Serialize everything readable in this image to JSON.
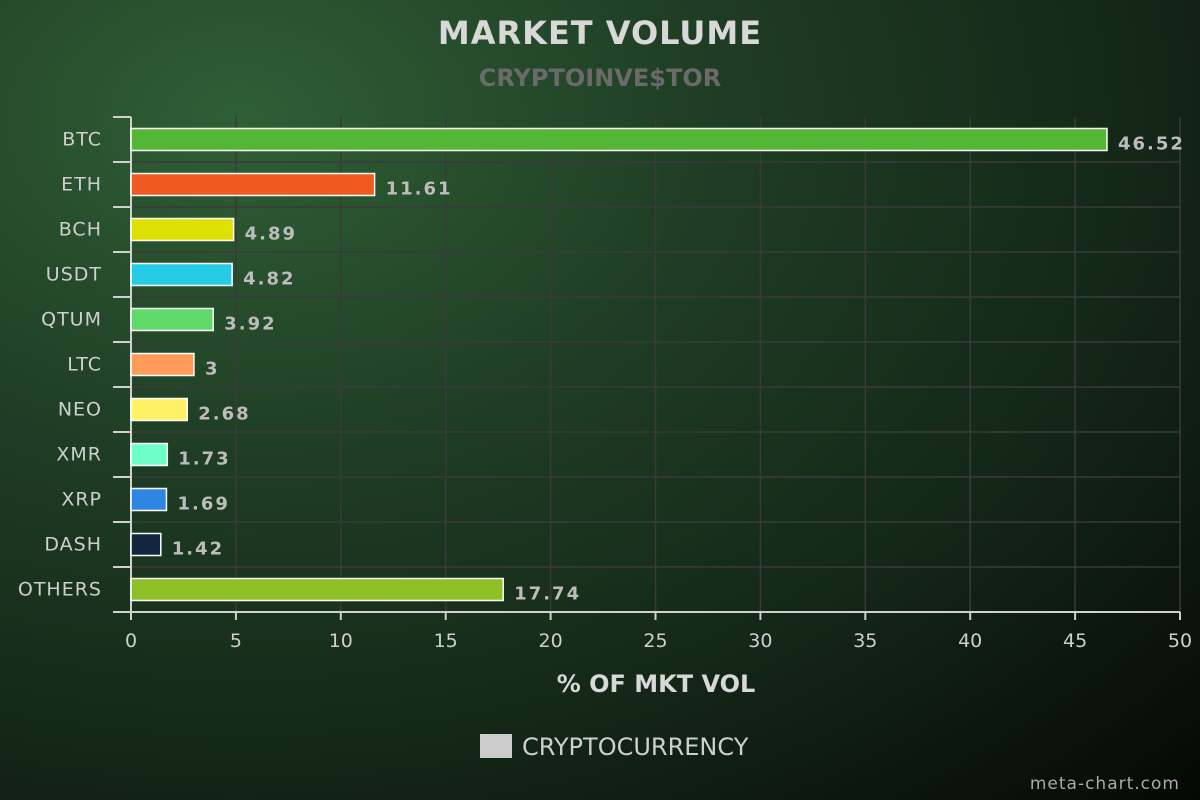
{
  "chart_data": {
    "type": "bar",
    "orientation": "horizontal",
    "title": "MARKET VOLUME",
    "subtitle": "CRYPTOINVE$TOR",
    "xlabel": "% OF MKT VOL",
    "categories": [
      "BTC",
      "ETH",
      "BCH",
      "USDT",
      "QTUM",
      "LTC",
      "NEO",
      "XMR",
      "XRP",
      "DASH",
      "OTHERS"
    ],
    "series": [
      {
        "name": "CRYPTOCURRENCY",
        "values": [
          46.52,
          11.61,
          4.89,
          4.82,
          3.92,
          3,
          2.68,
          1.73,
          1.69,
          1.42,
          17.74
        ],
        "labels": [
          "46.52",
          "11.61",
          "4.89",
          "4.82",
          "3.92",
          "3",
          "2.68",
          "1.73",
          "1.69",
          "1.42",
          "17.74"
        ],
        "colors": [
          "#55b535",
          "#f05a22",
          "#dde000",
          "#26cbe6",
          "#5fda6a",
          "#fe9a5a",
          "#fff166",
          "#6effc8",
          "#2e86e0",
          "#122640",
          "#8fbf27"
        ]
      }
    ],
    "xlim": [
      0,
      50
    ],
    "xticks": [
      0,
      5,
      10,
      15,
      20,
      25,
      30,
      35,
      40,
      45,
      50
    ],
    "grid": true,
    "legend": {
      "position": "bottom-center",
      "swatch_color": "#cccccc"
    }
  },
  "credit": "meta-chart.com"
}
